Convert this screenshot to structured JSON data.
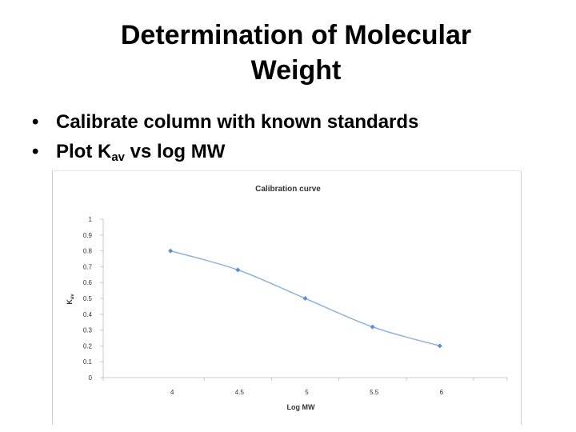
{
  "slide": {
    "title_line1": "Determination of Molecular",
    "title_line2": "Weight",
    "bullet1": "Calibrate column with known standards",
    "bullet2_prefix": "Plot K",
    "bullet2_sub": "av",
    "bullet2_suffix": " vs log MW"
  },
  "chart_data": {
    "type": "line",
    "title": "Calibration curve",
    "xlabel": "Log MW",
    "ylabel": "K",
    "ylabel_sub": "av",
    "x": [
      4,
      4.5,
      5,
      5.5,
      6
    ],
    "x_tick_labels": [
      "4",
      "4.5",
      "5",
      "5.5",
      "6"
    ],
    "y": [
      0.8,
      0.68,
      0.5,
      0.32,
      0.2
    ],
    "ylim": [
      0,
      1
    ],
    "y_ticks": [
      0,
      0.1,
      0.2,
      0.3,
      0.4,
      0.5,
      0.6,
      0.7,
      0.8,
      0.9,
      1
    ],
    "y_tick_labels": [
      "0",
      "0.1",
      "0.2",
      "0.3",
      "0.4",
      "0.5",
      "0.6",
      "0.7",
      "0.8",
      "0.9",
      "1"
    ],
    "grid": false,
    "legend": "none",
    "series_color": "#8fb4dc",
    "marker_color": "#5b8fd0",
    "axis_color": "#c8c8c8"
  }
}
